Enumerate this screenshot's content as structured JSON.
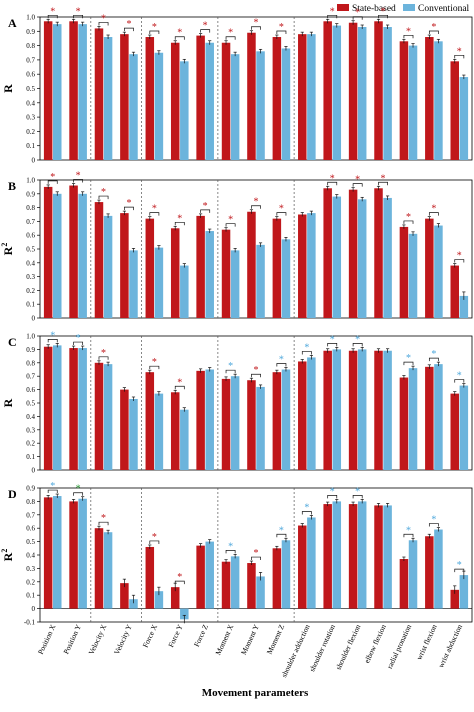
{
  "colors": {
    "state": "#c0171b",
    "conv": "#6cb4dc",
    "star_blue": "#4fa8dc",
    "star_green": "#2f9a3a"
  },
  "legend": {
    "state": "State-based",
    "conv": "Conventional"
  },
  "xlabel": "Movement parameters",
  "categories": [
    "Position X",
    "Position Y",
    "Velocity X",
    "Velocity Y",
    "Force X",
    "Force Y",
    "Force Z",
    "Moment X",
    "Moment Y",
    "Moment Z",
    "shoulder adduction",
    "shoulder rotation",
    "shoulder flexion",
    "elbow flexion",
    "radial pronation",
    "wrist flexion",
    "wrist abduction"
  ],
  "chart_data": [
    {
      "type": "bar",
      "panel": "A",
      "ylabel": "R",
      "ylim": [
        0,
        1.0
      ],
      "yticks": [
        "0",
        "0.1",
        "0.2",
        "0.3",
        "0.4",
        "0.5",
        "0.6",
        "0.7",
        "0.8",
        "0.9",
        "1.0"
      ],
      "series": [
        {
          "name": "State-based",
          "values": [
            0.97,
            0.97,
            0.92,
            0.88,
            0.86,
            0.82,
            0.87,
            0.82,
            0.89,
            0.86,
            0.88,
            0.97,
            0.96,
            0.97,
            0.83,
            0.86,
            0.69
          ]
        },
        {
          "name": "Conventional",
          "values": [
            0.95,
            0.95,
            0.86,
            0.74,
            0.75,
            0.69,
            0.82,
            0.74,
            0.76,
            0.78,
            0.88,
            0.94,
            0.93,
            0.93,
            0.8,
            0.83,
            0.58
          ]
        }
      ],
      "significance": [
        "red",
        "red",
        "red",
        "red",
        "red",
        "red",
        "red",
        "red",
        "red",
        "red",
        "",
        "red",
        "red",
        "red",
        "red",
        "red",
        "red"
      ]
    },
    {
      "type": "bar",
      "panel": "B",
      "ylabel": "R2",
      "ylim": [
        0,
        1.0
      ],
      "yticks": [
        "0",
        "0.1",
        "0.2",
        "0.3",
        "0.4",
        "0.5",
        "0.6",
        "0.7",
        "0.8",
        "0.9",
        "1.0"
      ],
      "series": [
        {
          "name": "State-based",
          "values": [
            0.95,
            0.96,
            0.84,
            0.76,
            0.72,
            0.65,
            0.74,
            0.64,
            0.77,
            0.72,
            0.75,
            0.94,
            0.93,
            0.94,
            0.66,
            0.72,
            0.38
          ]
        },
        {
          "name": "Conventional",
          "values": [
            0.9,
            0.9,
            0.74,
            0.49,
            0.51,
            0.38,
            0.63,
            0.49,
            0.53,
            0.57,
            0.76,
            0.88,
            0.86,
            0.87,
            0.61,
            0.67,
            0.16
          ]
        }
      ],
      "significance": [
        "red",
        "red",
        "red",
        "red",
        "red",
        "red",
        "red",
        "red",
        "red",
        "red",
        "",
        "red",
        "red",
        "red",
        "red",
        "red",
        "red"
      ]
    },
    {
      "type": "bar",
      "panel": "C",
      "ylabel": "R",
      "ylim": [
        0,
        1.0
      ],
      "yticks": [
        "0",
        "0.1",
        "0.2",
        "0.3",
        "0.4",
        "0.5",
        "0.6",
        "0.7",
        "0.8",
        "0.9",
        "1.0"
      ],
      "series": [
        {
          "name": "State-based",
          "values": [
            0.92,
            0.91,
            0.8,
            0.6,
            0.73,
            0.58,
            0.74,
            0.68,
            0.67,
            0.73,
            0.81,
            0.89,
            0.89,
            0.89,
            0.69,
            0.77,
            0.57
          ]
        },
        {
          "name": "Conventional",
          "values": [
            0.93,
            0.91,
            0.79,
            0.53,
            0.57,
            0.45,
            0.75,
            0.7,
            0.62,
            0.75,
            0.84,
            0.9,
            0.9,
            0.89,
            0.76,
            0.79,
            0.63
          ]
        }
      ],
      "significance": [
        "blue",
        "blue",
        "red",
        "",
        "red",
        "red",
        "",
        "blue",
        "red",
        "blue",
        "blue",
        "blue",
        "blue",
        "",
        "blue",
        "blue",
        "blue"
      ]
    },
    {
      "type": "bar",
      "panel": "D",
      "ylabel": "R2",
      "ylim": [
        -0.1,
        0.9
      ],
      "yticks": [
        "-0.1",
        "0",
        "0.1",
        "0.2",
        "0.3",
        "0.4",
        "0.5",
        "0.6",
        "0.7",
        "0.8",
        "0.9"
      ],
      "series": [
        {
          "name": "State-based",
          "values": [
            0.83,
            0.8,
            0.6,
            0.19,
            0.46,
            0.16,
            0.47,
            0.35,
            0.34,
            0.45,
            0.62,
            0.78,
            0.78,
            0.77,
            0.37,
            0.54,
            0.14
          ]
        },
        {
          "name": "Conventional",
          "values": [
            0.84,
            0.82,
            0.57,
            0.07,
            0.13,
            -0.08,
            0.5,
            0.39,
            0.24,
            0.51,
            0.68,
            0.8,
            0.8,
            0.77,
            0.51,
            0.59,
            0.25
          ]
        }
      ],
      "significance": [
        "blue",
        "green",
        "red",
        "",
        "red",
        "red",
        "",
        "blue",
        "red",
        "blue",
        "blue",
        "blue",
        "blue",
        "",
        "blue",
        "blue",
        "blue"
      ]
    }
  ]
}
